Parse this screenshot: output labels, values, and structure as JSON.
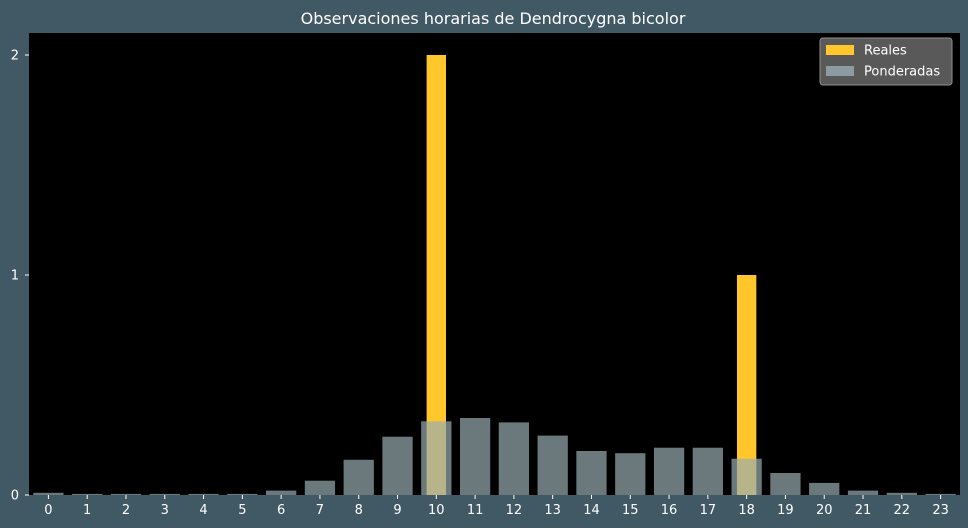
{
  "chart_data": {
    "type": "bar",
    "title": "Observaciones horarias de Dendrocygna bicolor",
    "xlabel": "",
    "ylabel": "",
    "categories": [
      "0",
      "1",
      "2",
      "3",
      "4",
      "5",
      "6",
      "7",
      "8",
      "9",
      "10",
      "11",
      "12",
      "13",
      "14",
      "15",
      "16",
      "17",
      "18",
      "19",
      "20",
      "21",
      "22",
      "23"
    ],
    "series": [
      {
        "name": "Reales",
        "color": "#ffc72c",
        "values": [
          0,
          0,
          0,
          0,
          0,
          0,
          0,
          0,
          0,
          0,
          2,
          0,
          0,
          0,
          0,
          0,
          0,
          0,
          1,
          0,
          0,
          0,
          0,
          0
        ]
      },
      {
        "name": "Ponderadas",
        "color": "#9aacb1",
        "opacity": 0.7,
        "values": [
          0.01,
          0.005,
          0.005,
          0.005,
          0.005,
          0.005,
          0.02,
          0.065,
          0.16,
          0.265,
          0.335,
          0.35,
          0.33,
          0.27,
          0.2,
          0.19,
          0.215,
          0.215,
          0.165,
          0.1,
          0.055,
          0.02,
          0.01,
          0.005
        ]
      }
    ],
    "yticks": [
      0,
      1,
      2
    ],
    "ylim": [
      0,
      2.1
    ],
    "grid": false,
    "legend": "top-right",
    "background": "#000000",
    "figure_background": "#415865",
    "text_color": "#ffffff"
  }
}
